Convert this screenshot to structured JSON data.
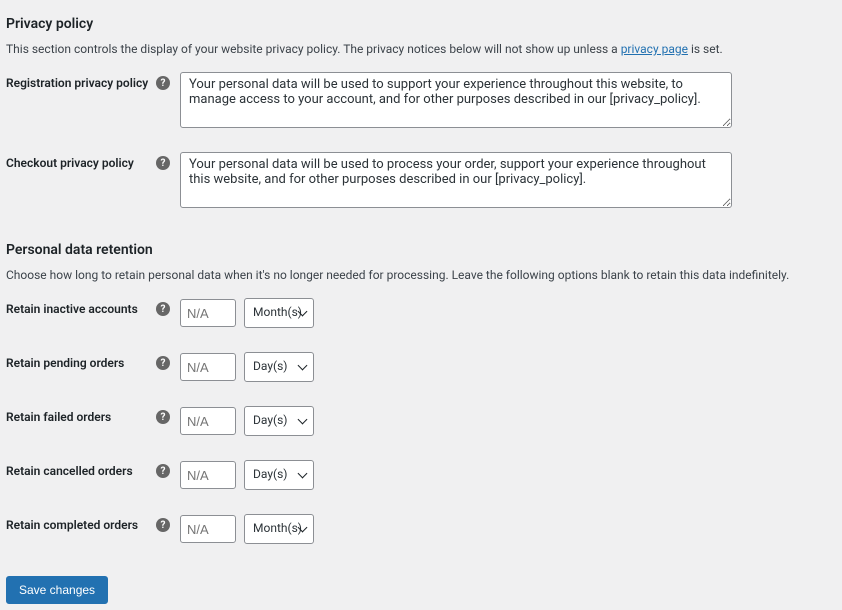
{
  "privacy": {
    "heading": "Privacy policy",
    "desc_prefix": "This section controls the display of your website privacy policy. The privacy notices below will not show up unless a ",
    "link_text": "privacy page",
    "desc_suffix": " is set.",
    "registration_label": "Registration privacy policy",
    "registration_value": "Your personal data will be used to support your experience throughout this website, to manage access to your account, and for other purposes described in our [privacy_policy].",
    "checkout_label": "Checkout privacy policy",
    "checkout_value": "Your personal data will be used to process your order, support your experience throughout this website, and for other purposes described in our [privacy_policy]."
  },
  "retention": {
    "heading": "Personal data retention",
    "desc": "Choose how long to retain personal data when it's no longer needed for processing. Leave the following options blank to retain this data indefinitely.",
    "rows": [
      {
        "label": "Retain inactive accounts",
        "value": "",
        "placeholder": "N/A",
        "unit": "Month(s)"
      },
      {
        "label": "Retain pending orders",
        "value": "",
        "placeholder": "N/A",
        "unit": "Day(s)"
      },
      {
        "label": "Retain failed orders",
        "value": "",
        "placeholder": "N/A",
        "unit": "Day(s)"
      },
      {
        "label": "Retain cancelled orders",
        "value": "",
        "placeholder": "N/A",
        "unit": "Day(s)"
      },
      {
        "label": "Retain completed orders",
        "value": "",
        "placeholder": "N/A",
        "unit": "Month(s)"
      }
    ]
  },
  "save_label": "Save changes",
  "colors": {
    "link": "#2271b1",
    "button_bg": "#2271b1",
    "border": "#8c8f94",
    "bg": "#f0f0f1"
  }
}
